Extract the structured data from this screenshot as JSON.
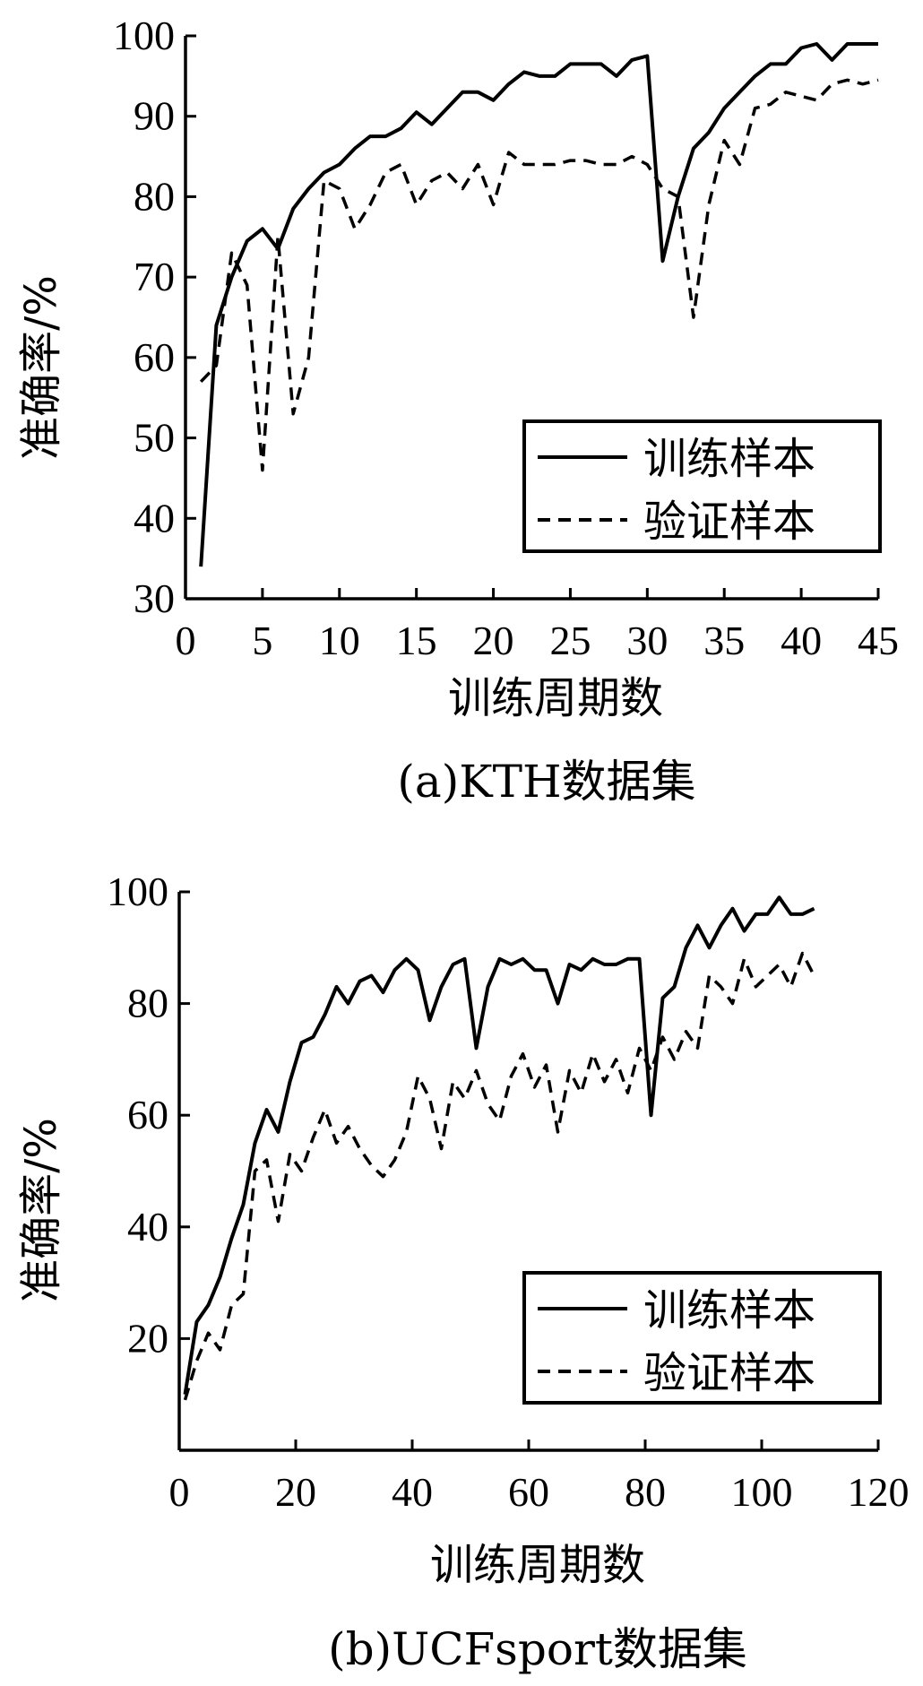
{
  "chart_data": [
    {
      "type": "line",
      "caption": "(a)KTH数据集",
      "xlabel": "训练周期数",
      "ylabel": "准确率/%",
      "xlim": [
        0,
        45
      ],
      "ylim": [
        30,
        100
      ],
      "xticks": [
        "0",
        "5",
        "10",
        "15",
        "20",
        "25",
        "30",
        "35",
        "40",
        "45"
      ],
      "yticks": [
        "30",
        "40",
        "50",
        "60",
        "70",
        "80",
        "90",
        "100"
      ],
      "legend_position": "bottom-right",
      "series": [
        {
          "name": "训练样本",
          "style": "solid",
          "x": [
            1,
            2,
            3,
            4,
            5,
            6,
            7,
            8,
            9,
            10,
            11,
            12,
            13,
            14,
            15,
            16,
            17,
            18,
            19,
            20,
            21,
            22,
            23,
            24,
            25,
            26,
            27,
            28,
            29,
            30,
            31,
            32,
            33,
            34,
            35,
            36,
            37,
            38,
            39,
            40,
            41,
            42,
            43,
            44,
            45
          ],
          "y": [
            34,
            64,
            70,
            74.5,
            76,
            73.5,
            78.5,
            81,
            83,
            84,
            86,
            87.5,
            87.5,
            88.5,
            90.5,
            89,
            91,
            93,
            93,
            92,
            94,
            95.5,
            95,
            95,
            96.5,
            96.5,
            96.5,
            95,
            97,
            97.5,
            72,
            80,
            86,
            88,
            91,
            93,
            95,
            96.5,
            96.5,
            98.5,
            99,
            97,
            99,
            99,
            99
          ]
        },
        {
          "name": "验证样本",
          "style": "dashed",
          "x": [
            1,
            2,
            3,
            4,
            5,
            6,
            7,
            8,
            9,
            10,
            11,
            12,
            13,
            14,
            15,
            16,
            17,
            18,
            19,
            20,
            21,
            22,
            23,
            24,
            25,
            26,
            27,
            28,
            29,
            30,
            31,
            32,
            33,
            34,
            35,
            36,
            37,
            38,
            39,
            40,
            41,
            42,
            43,
            44,
            45
          ],
          "y": [
            57,
            59,
            73,
            69,
            46,
            75,
            53,
            60,
            82,
            81,
            76,
            79,
            83,
            84,
            79,
            82,
            83,
            81,
            84,
            79,
            85.5,
            84,
            84,
            84,
            84.5,
            84.5,
            84,
            84,
            85,
            84,
            81,
            80,
            65,
            79,
            87,
            84,
            91,
            91.5,
            93,
            92.5,
            92,
            94,
            94.5,
            94,
            94.5
          ]
        }
      ]
    },
    {
      "type": "line",
      "caption": "(b)UCFsport数据集",
      "xlabel": "训练周期数",
      "ylabel": "准确率/%",
      "xlim": [
        0,
        120
      ],
      "ylim": [
        0,
        100
      ],
      "xticks": [
        "0",
        "20",
        "40",
        "60",
        "80",
        "100",
        "120"
      ],
      "yticks": [
        "20",
        "40",
        "60",
        "80",
        "100"
      ],
      "legend_position": "bottom-right",
      "series": [
        {
          "name": "训练样本",
          "style": "solid",
          "x": [
            1,
            3,
            5,
            7,
            9,
            11,
            13,
            15,
            17,
            19,
            21,
            23,
            25,
            27,
            29,
            31,
            33,
            35,
            37,
            39,
            41,
            43,
            45,
            47,
            49,
            51,
            53,
            55,
            57,
            59,
            61,
            63,
            65,
            67,
            69,
            71,
            73,
            75,
            77,
            79,
            81,
            83,
            85,
            87,
            89,
            91,
            93,
            95,
            97,
            99,
            101,
            103,
            105,
            107,
            109
          ],
          "y": [
            10,
            23,
            26,
            31,
            38,
            44,
            55,
            61,
            57,
            66,
            73,
            74,
            78,
            83,
            80,
            84,
            85,
            82,
            86,
            88,
            86,
            77,
            83,
            87,
            88,
            72,
            83,
            88,
            87,
            88,
            86,
            86,
            80,
            87,
            86,
            88,
            87,
            87,
            88,
            88,
            60,
            81,
            83,
            90,
            94,
            90,
            94,
            97,
            93,
            96,
            96,
            99,
            96,
            96,
            97
          ]
        },
        {
          "name": "验证样本",
          "style": "dashed",
          "x": [
            1,
            3,
            5,
            7,
            9,
            11,
            13,
            15,
            17,
            19,
            21,
            23,
            25,
            27,
            29,
            31,
            33,
            35,
            37,
            39,
            41,
            43,
            45,
            47,
            49,
            51,
            53,
            55,
            57,
            59,
            61,
            63,
            65,
            67,
            69,
            71,
            73,
            75,
            77,
            79,
            81,
            83,
            85,
            87,
            89,
            91,
            93,
            95,
            97,
            99,
            101,
            103,
            105,
            107,
            109
          ],
          "y": [
            9,
            16,
            21,
            18,
            26,
            28,
            50,
            52,
            41,
            53,
            50,
            56,
            61,
            55,
            58,
            54,
            51,
            49,
            52,
            57,
            67,
            63,
            54,
            66,
            63,
            68,
            62,
            59,
            67,
            71,
            65,
            69,
            57,
            68,
            64,
            71,
            66,
            70,
            64,
            72,
            68,
            74,
            70,
            75,
            72,
            85,
            83,
            80,
            88,
            83,
            85,
            87,
            83,
            89,
            85
          ]
        }
      ]
    }
  ]
}
